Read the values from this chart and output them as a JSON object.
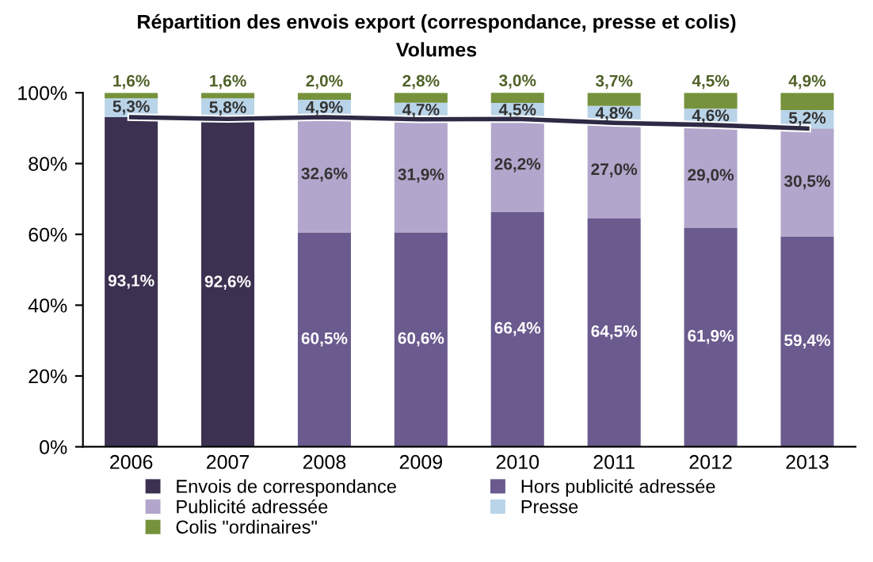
{
  "chart_data": {
    "type": "bar",
    "title": "Répartition des envois export (correspondance, presse et colis)",
    "subtitle": "Volumes",
    "categories": [
      "2006",
      "2007",
      "2008",
      "2009",
      "2010",
      "2011",
      "2012",
      "2013"
    ],
    "stacked": true,
    "ylim": [
      0,
      100
    ],
    "yticks": [
      {
        "value": 0,
        "label": "0%"
      },
      {
        "value": 20,
        "label": "20%"
      },
      {
        "value": 40,
        "label": "40%"
      },
      {
        "value": 60,
        "label": "60%"
      },
      {
        "value": 80,
        "label": "80%"
      },
      {
        "value": 100,
        "label": "100%"
      }
    ],
    "grid": false,
    "legend": "bottom",
    "series": [
      {
        "name": "Envois de correspondance",
        "color": "#3d3152",
        "values": [
          93.1,
          92.6,
          null,
          null,
          null,
          null,
          null,
          null
        ],
        "value_labels": [
          "93,1%",
          "92,6%",
          null,
          null,
          null,
          null,
          null,
          null
        ]
      },
      {
        "name": "Hors publicité adressée",
        "color": "#6a5a8e",
        "values": [
          null,
          null,
          60.5,
          60.6,
          66.4,
          64.5,
          61.9,
          59.4
        ],
        "value_labels": [
          null,
          null,
          "60,5%",
          "60,6%",
          "66,4%",
          "64,5%",
          "61,9%",
          "59,4%"
        ]
      },
      {
        "name": "Publicité adressée",
        "color": "#b3a6cc",
        "values": [
          null,
          null,
          32.6,
          31.9,
          26.2,
          27.0,
          29.0,
          30.5
        ],
        "value_labels": [
          null,
          null,
          "32,6%",
          "31,9%",
          "26,2%",
          "27,0%",
          "29,0%",
          "30,5%"
        ]
      },
      {
        "name": "Presse",
        "color": "#b9d4e8",
        "values": [
          5.3,
          5.8,
          4.9,
          4.7,
          4.5,
          4.8,
          4.6,
          5.2
        ],
        "value_labels": [
          "5,3%",
          "5,8%",
          "4,9%",
          "4,7%",
          "4,5%",
          "4,8%",
          "4,6%",
          "5,2%"
        ]
      },
      {
        "name": "Colis \"ordinaires\"",
        "color": "#76923c",
        "values": [
          1.6,
          1.6,
          2.0,
          2.8,
          3.0,
          3.7,
          4.5,
          4.9
        ],
        "value_labels": [
          "1,6%",
          "1,6%",
          "2,0%",
          "2,8%",
          "3,0%",
          "3,7%",
          "4,5%",
          "4,9%"
        ]
      },
      {
        "type": "line",
        "color": "#2e2a45",
        "marker": "none",
        "line_style": "solid",
        "values": [
          93.1,
          92.6,
          93.1,
          92.5,
          92.6,
          91.5,
          90.9,
          89.9
        ]
      }
    ]
  }
}
